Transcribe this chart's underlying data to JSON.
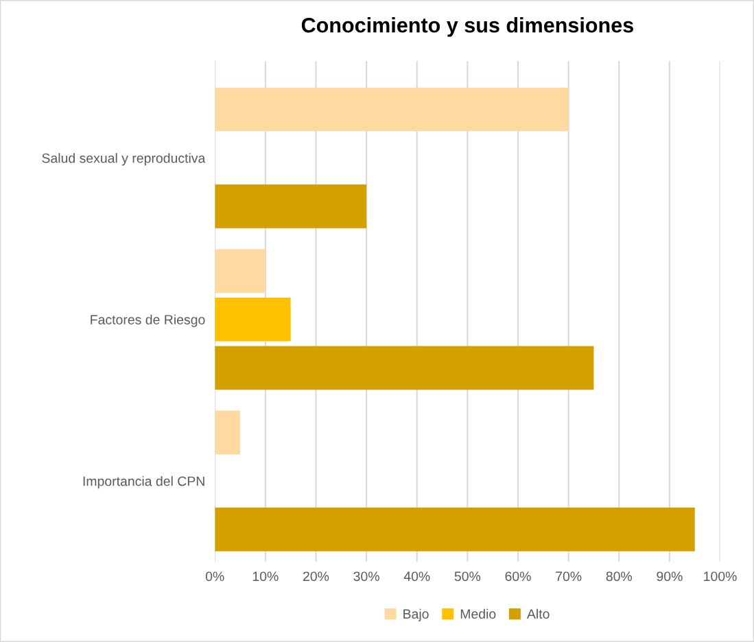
{
  "chart_data": {
    "type": "bar",
    "orientation": "horizontal",
    "title": "Conocimiento y sus dimensiones",
    "categories": [
      "Salud sexual y reproductiva",
      "Factores de Riesgo",
      "Importancia del CPN"
    ],
    "series": [
      {
        "name": "Bajo",
        "color": "#ffd9a0",
        "values": [
          70,
          10,
          5
        ]
      },
      {
        "name": "Medio",
        "color": "#ffc000",
        "values": [
          0,
          15,
          0
        ]
      },
      {
        "name": "Alto",
        "color": "#d4a000",
        "values": [
          30,
          75,
          95
        ]
      }
    ],
    "xlim": [
      0,
      100
    ],
    "xticks": [
      {
        "value": 0,
        "label": "0%"
      },
      {
        "value": 10,
        "label": "10%"
      },
      {
        "value": 20,
        "label": "20%"
      },
      {
        "value": 30,
        "label": "30%"
      },
      {
        "value": 40,
        "label": "40%"
      },
      {
        "value": 50,
        "label": "50%"
      },
      {
        "value": 60,
        "label": "60%"
      },
      {
        "value": 70,
        "label": "70%"
      },
      {
        "value": 80,
        "label": "80%"
      },
      {
        "value": 90,
        "label": "90%"
      },
      {
        "value": 100,
        "label": "100%"
      }
    ],
    "grid": "x",
    "legend": "bottom"
  }
}
